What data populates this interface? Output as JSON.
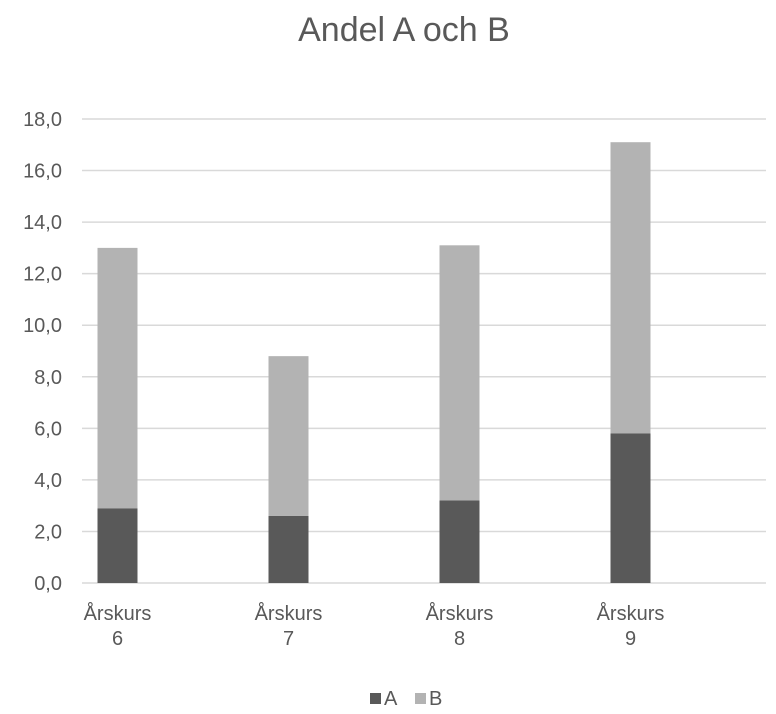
{
  "chart_data": {
    "type": "bar",
    "stacked": true,
    "title": "Andel A och B",
    "xlabel": "",
    "ylabel": "",
    "categories": [
      [
        "Årskurs",
        "6"
      ],
      [
        "Årskurs",
        "7"
      ],
      [
        "Årskurs",
        "8"
      ],
      [
        "Årskurs",
        "9"
      ]
    ],
    "series": [
      {
        "name": "A",
        "color": "#595959",
        "values": [
          2.9,
          2.6,
          3.2,
          5.8
        ]
      },
      {
        "name": "B",
        "color": "#b3b3b3",
        "values": [
          10.1,
          6.2,
          9.9,
          11.3
        ]
      }
    ],
    "ylim": [
      0,
      18
    ],
    "yticks": [
      "0,0",
      "2,0",
      "4,0",
      "6,0",
      "8,0",
      "10,0",
      "12,0",
      "14,0",
      "16,0",
      "18,0"
    ],
    "grid": true,
    "legend_position": "bottom"
  }
}
